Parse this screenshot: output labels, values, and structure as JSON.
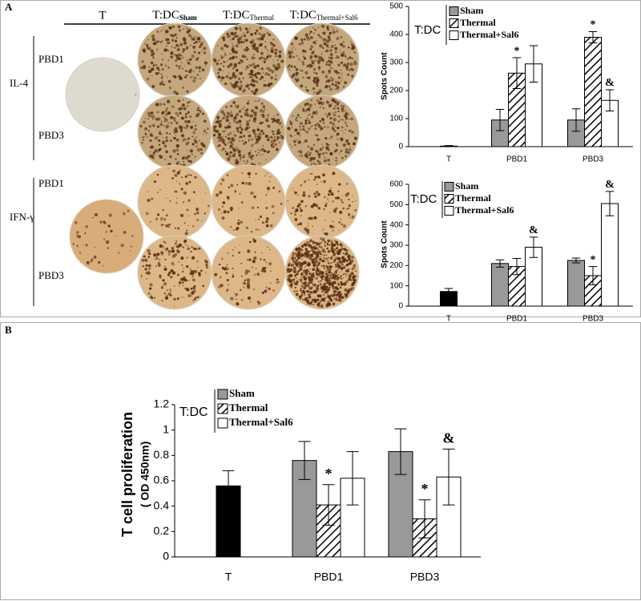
{
  "panel_a": {
    "label": "A",
    "columns": [
      {
        "main": "T"
      },
      {
        "main": "T:DC",
        "sub": "Sham"
      },
      {
        "main": "T:DC",
        "sub": "Thermal"
      },
      {
        "main": "T:DC",
        "sub": "Thermal+Sal6"
      }
    ],
    "groups": [
      {
        "name": "IL-4",
        "rows": [
          "PBD1",
          "PBD3"
        ]
      },
      {
        "name": "IFN-γ",
        "rows": [
          "PBD1",
          "PBD3"
        ]
      }
    ]
  },
  "panel_b": {
    "label": "B"
  },
  "chart_data": [
    {
      "type": "bar",
      "y_label": "Spots Count",
      "legend_title": "T:DC",
      "categories": [
        "T",
        "PBD1",
        "PBD3"
      ],
      "control": {
        "value": 2,
        "error": 2,
        "color": "#000000"
      },
      "series": [
        {
          "name": "Sham",
          "color": "#999999",
          "values": [
            null,
            95,
            95
          ],
          "errors": [
            null,
            38,
            40
          ],
          "marks": [
            null,
            null,
            null
          ]
        },
        {
          "name": "Thermal",
          "color": "hatch",
          "values": [
            null,
            262,
            390
          ],
          "errors": [
            null,
            55,
            20
          ],
          "marks": [
            null,
            "*",
            "*"
          ]
        },
        {
          "name": "Thermal+Sal6",
          "color": "#ffffff",
          "values": [
            null,
            295,
            165
          ],
          "errors": [
            null,
            65,
            38
          ],
          "marks": [
            null,
            null,
            "&"
          ]
        }
      ],
      "ylim": [
        0,
        500
      ],
      "yticks": [
        0,
        100,
        200,
        300,
        400,
        500
      ]
    },
    {
      "type": "bar",
      "y_label": "Spots Count",
      "legend_title": "T:DC",
      "categories": [
        "T",
        "PBD1",
        "PBD3"
      ],
      "control": {
        "value": 72,
        "error": 15,
        "color": "#000000"
      },
      "series": [
        {
          "name": "Sham",
          "color": "#999999",
          "values": [
            null,
            210,
            225
          ],
          "errors": [
            null,
            18,
            12
          ],
          "marks": [
            null,
            null,
            null
          ]
        },
        {
          "name": "Thermal",
          "color": "hatch",
          "values": [
            null,
            195,
            150
          ],
          "errors": [
            null,
            40,
            45
          ],
          "marks": [
            null,
            null,
            "*"
          ]
        },
        {
          "name": "Thermal+Sal6",
          "color": "#ffffff",
          "values": [
            null,
            290,
            505
          ],
          "errors": [
            null,
            50,
            60
          ],
          "marks": [
            null,
            "&",
            "&"
          ]
        }
      ],
      "ylim": [
        0,
        600
      ],
      "yticks": [
        0,
        100,
        200,
        300,
        400,
        500,
        600
      ]
    },
    {
      "type": "bar",
      "y_label": [
        "T cell proliferation",
        "( OD 450nm)"
      ],
      "legend_title": "T:DC",
      "categories": [
        "T",
        "PBD1",
        "PBD3"
      ],
      "control": {
        "value": 0.56,
        "error": 0.12,
        "color": "#000000"
      },
      "series": [
        {
          "name": "Sham",
          "color": "#999999",
          "values": [
            null,
            0.76,
            0.83
          ],
          "errors": [
            null,
            0.15,
            0.18
          ],
          "marks": [
            null,
            null,
            null
          ]
        },
        {
          "name": "Thermal",
          "color": "hatch",
          "values": [
            null,
            0.41,
            0.3
          ],
          "errors": [
            null,
            0.16,
            0.15
          ],
          "marks": [
            null,
            "*",
            "*"
          ]
        },
        {
          "name": "Thermal+Sal6",
          "color": "#ffffff",
          "values": [
            null,
            0.62,
            0.63
          ],
          "errors": [
            null,
            0.21,
            0.22
          ],
          "marks": [
            null,
            null,
            "&"
          ]
        }
      ],
      "ylim": [
        0,
        1.2
      ],
      "yticks": [
        0,
        0.2,
        0.4,
        0.6,
        0.8,
        1,
        1.2
      ]
    }
  ]
}
